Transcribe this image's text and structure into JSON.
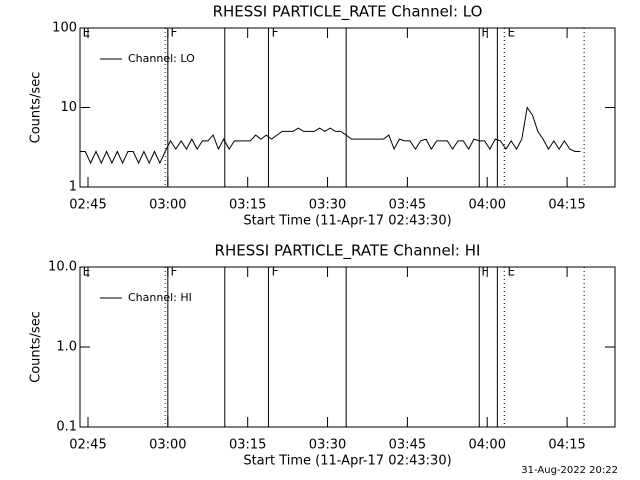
{
  "chart_data": [
    {
      "type": "line",
      "title": "RHESSI PARTICLE_RATE Channel: LO",
      "xlabel": "Start Time (11-Apr-17 02:43:30)",
      "ylabel": "Counts/sec",
      "log_y": true,
      "ylim": [
        1,
        100
      ],
      "yticks": [
        1,
        10,
        100
      ],
      "xlim": [
        0,
        100.5
      ],
      "xticks": [
        {
          "value": 1.5,
          "label": "02:45"
        },
        {
          "value": 16.5,
          "label": "03:00"
        },
        {
          "value": 31.5,
          "label": "03:15"
        },
        {
          "value": 46.5,
          "label": "03:30"
        },
        {
          "value": 61.5,
          "label": "03:45"
        },
        {
          "value": 76.5,
          "label": "04:00"
        },
        {
          "value": 91.5,
          "label": "04:15"
        }
      ],
      "x": [
        0,
        1,
        2,
        3,
        4,
        5,
        6,
        7,
        8,
        9,
        10,
        11,
        12,
        13,
        14,
        15,
        16,
        17,
        18,
        19,
        20,
        21,
        22,
        23,
        24,
        25,
        26,
        27,
        28,
        29,
        30,
        31,
        32,
        33,
        34,
        35,
        36,
        37,
        38,
        39,
        40,
        41,
        42,
        43,
        44,
        45,
        46,
        47,
        48,
        49,
        50,
        51,
        52,
        53,
        54,
        55,
        56,
        57,
        58,
        59,
        60,
        61,
        62,
        63,
        64,
        65,
        66,
        67,
        68,
        69,
        70,
        71,
        72,
        73,
        74,
        75,
        76,
        77,
        78,
        79,
        80,
        81,
        82,
        83,
        84,
        85,
        86,
        87,
        88,
        89,
        90,
        91,
        92,
        93,
        94
      ],
      "series": [
        {
          "name": "Channel: LO",
          "color": "#000000",
          "values": [
            2.8,
            2.8,
            2,
            2.8,
            2,
            2.8,
            2,
            2.8,
            2,
            2.8,
            2.8,
            2,
            2.8,
            2,
            2.8,
            2,
            2.8,
            3.8,
            3,
            3.8,
            3,
            4,
            3,
            3.8,
            3.8,
            4.5,
            3,
            4,
            3,
            3.8,
            3.8,
            3.8,
            3.8,
            4.5,
            4,
            4.5,
            4,
            4.5,
            5,
            5,
            5,
            5.5,
            5,
            5,
            5,
            5.5,
            5,
            5.5,
            5,
            5,
            4.5,
            4,
            4,
            4,
            4,
            4,
            4,
            4,
            4.5,
            3,
            4,
            3.8,
            3.8,
            3,
            3.8,
            4,
            3,
            3.8,
            3.8,
            3.8,
            3,
            3.8,
            3.8,
            3,
            4,
            3.8,
            3.8,
            3,
            4,
            3.8,
            3,
            3.8,
            3,
            4,
            10,
            8,
            5,
            4,
            3,
            3.8,
            3,
            3.8,
            3,
            2.8,
            2.8
          ]
        }
      ],
      "events": [
        {
          "x": 16,
          "style": "dotted"
        },
        {
          "x": 16.5,
          "style": "solid"
        },
        {
          "x": 27.2,
          "style": "solid"
        },
        {
          "x": 35.4,
          "style": "solid"
        },
        {
          "x": 50,
          "style": "solid"
        },
        {
          "x": 75,
          "style": "solid"
        },
        {
          "x": 78.4,
          "style": "solid"
        },
        {
          "x": 79.7,
          "style": "dotted"
        },
        {
          "x": 94.7,
          "style": "dotted"
        }
      ],
      "flags": [
        {
          "x": 0.5,
          "label": "E"
        },
        {
          "x": 17,
          "label": "F"
        },
        {
          "x": 36,
          "label": "F"
        },
        {
          "x": 75.4,
          "label": "F"
        },
        {
          "x": 80.3,
          "label": "E"
        }
      ]
    },
    {
      "type": "line",
      "title": "RHESSI PARTICLE_RATE Channel: HI",
      "xlabel": "Start Time (11-Apr-17 02:43:30)",
      "ylabel": "Counts/sec",
      "log_y": true,
      "ylim": [
        0.1,
        10
      ],
      "yticks": [
        0.1,
        {
          "value": 1,
          "label": "1.0"
        },
        {
          "value": 10,
          "label": "10.0"
        }
      ],
      "xlim": [
        0,
        100.5
      ],
      "xticks": [
        {
          "value": 1.5,
          "label": "02:45"
        },
        {
          "value": 16.5,
          "label": "03:00"
        },
        {
          "value": 31.5,
          "label": "03:15"
        },
        {
          "value": 46.5,
          "label": "03:30"
        },
        {
          "value": 61.5,
          "label": "03:45"
        },
        {
          "value": 76.5,
          "label": "04:00"
        },
        {
          "value": 91.5,
          "label": "04:15"
        }
      ],
      "series": [
        {
          "name": "Channel: HI",
          "color": "#000000"
        }
      ],
      "events": [
        {
          "x": 16,
          "style": "dotted"
        },
        {
          "x": 16.5,
          "style": "solid"
        },
        {
          "x": 27.2,
          "style": "solid"
        },
        {
          "x": 35.4,
          "style": "solid"
        },
        {
          "x": 50,
          "style": "solid"
        },
        {
          "x": 75,
          "style": "solid"
        },
        {
          "x": 78.4,
          "style": "solid"
        },
        {
          "x": 79.7,
          "style": "dotted"
        },
        {
          "x": 94.7,
          "style": "dotted"
        }
      ],
      "flags": [
        {
          "x": 0.5,
          "label": "E"
        },
        {
          "x": 17,
          "label": "F"
        },
        {
          "x": 36,
          "label": "F"
        },
        {
          "x": 75.4,
          "label": "F"
        },
        {
          "x": 80.3,
          "label": "E"
        }
      ]
    }
  ],
  "footer": "31-Aug-2022 20:22"
}
